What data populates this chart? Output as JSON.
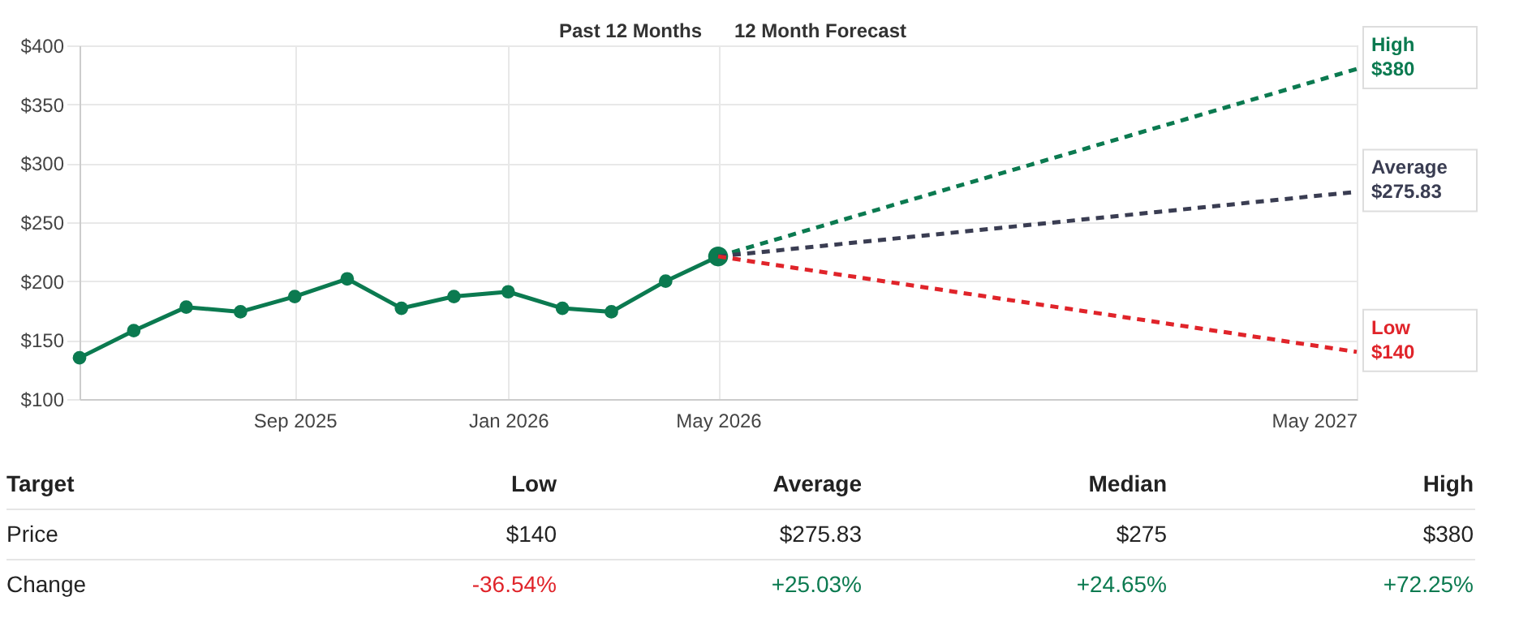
{
  "chart_data": {
    "type": "line",
    "title": "Past 12 Months",
    "subtitle": "12 Month Forecast",
    "xlim": [
      "2025-05",
      "2027-05"
    ],
    "xticks": [
      {
        "value": "2025-09",
        "label": "Sep 2025"
      },
      {
        "value": "2026-01",
        "label": "Jan 2026"
      },
      {
        "value": "2026-05",
        "label": "May 2026"
      },
      {
        "value": "2027-05",
        "label": "May 2027"
      }
    ],
    "ylim": [
      100,
      400
    ],
    "yticks": [
      {
        "value": 100,
        "label": "$100"
      },
      {
        "value": 150,
        "label": "$150"
      },
      {
        "value": 200,
        "label": "$200"
      },
      {
        "value": 250,
        "label": "$250"
      },
      {
        "value": 300,
        "label": "$300"
      },
      {
        "value": 350,
        "label": "$350"
      },
      {
        "value": 400,
        "label": "$400"
      }
    ],
    "grid": true,
    "series": [
      {
        "color": "#0b7a50",
        "marker": "circle",
        "line_style": "solid",
        "x": [
          "2025-05",
          "2025-06",
          "2025-07",
          "2025-08",
          "2025-09",
          "2025-10",
          "2025-11",
          "2025-12",
          "2026-01",
          "2026-02",
          "2026-03",
          "2026-04",
          "2026-05"
        ],
        "values": [
          135,
          158,
          178,
          174,
          187,
          202,
          177,
          187,
          191,
          177,
          174,
          200,
          221
        ]
      },
      {
        "name": "High",
        "color": "#0b7a50",
        "marker": "none",
        "line_style": "dashed",
        "x": [
          "2026-05",
          "2027-05"
        ],
        "values": [
          221,
          380
        ],
        "value_labels": [
          null,
          "$380"
        ]
      },
      {
        "name": "Average",
        "color": "#3a3d52",
        "marker": "none",
        "line_style": "dashed",
        "x": [
          "2026-05",
          "2027-05"
        ],
        "values": [
          221,
          275.83
        ],
        "value_labels": [
          null,
          "$275.83"
        ]
      },
      {
        "name": "Low",
        "color": "#e0242a",
        "marker": "none",
        "line_style": "dashed",
        "x": [
          "2026-05",
          "2027-05"
        ],
        "values": [
          221,
          140
        ],
        "value_labels": [
          null,
          "$140"
        ]
      }
    ],
    "annotations": [
      "Target",
      "Low",
      "Average",
      "Median",
      "High",
      "Price",
      "$140",
      "$275.83",
      "$275",
      "$380",
      "Change",
      "-36.54%",
      "+25.03%",
      "+24.65%",
      "+72.25%"
    ]
  }
}
